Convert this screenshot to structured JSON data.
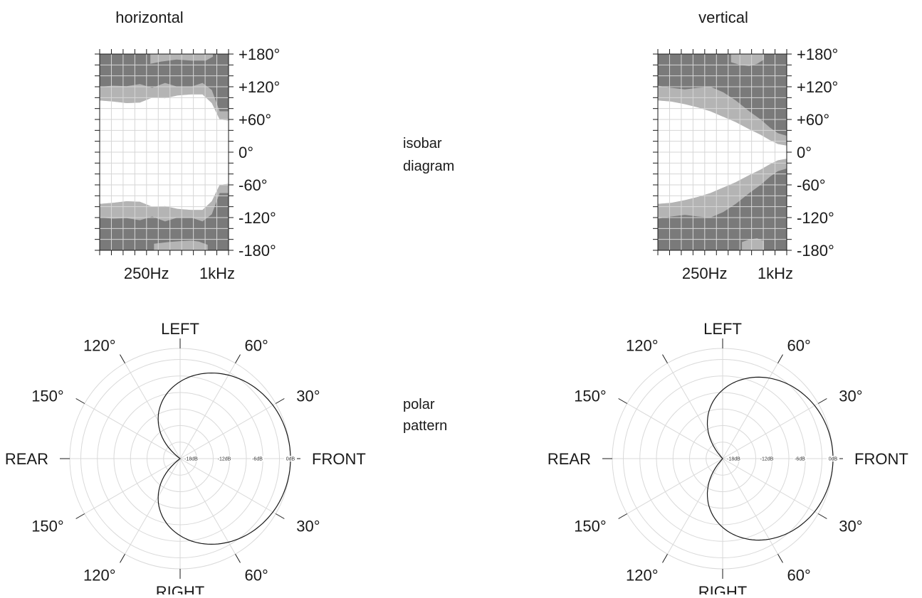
{
  "labels": {
    "horizontal": "horizontal",
    "vertical": "vertical",
    "isobar_line1": "isobar",
    "isobar_line2": "diagram",
    "polar_line1": "polar",
    "polar_line2": "pattern"
  },
  "colors": {
    "dark": "#7a7a7a",
    "light": "#b4b4b4",
    "grid_on_white": "#d6d6d6",
    "grid_on_fill": "#c8c8c8",
    "ink": "#1a1a1a",
    "polar_grid": "#d9d9d9"
  },
  "chart_data": [
    {
      "type": "heatmap",
      "name": "horizontal-isobar",
      "title": "horizontal",
      "x_scale": "log",
      "x_range_hz": [
        100,
        1250
      ],
      "x_tick_labels": [
        {
          "hz": 250,
          "label": "250Hz"
        },
        {
          "hz": 1000,
          "label": "1kHz"
        }
      ],
      "y_range_deg": [
        -180,
        180
      ],
      "y_tick_labels": [
        {
          "deg": 180,
          "label": "+180°"
        },
        {
          "deg": 120,
          "label": "+120°"
        },
        {
          "deg": 60,
          "label": "+60°"
        },
        {
          "deg": 0,
          "label": "0°"
        },
        {
          "deg": -60,
          "label": "-60°"
        },
        {
          "deg": -120,
          "label": "-120°"
        },
        {
          "deg": -180,
          "label": "-180°"
        }
      ],
      "boundary_freq_hz": [
        100,
        130,
        170,
        220,
        280,
        360,
        460,
        600,
        750,
        900,
        1050,
        1250
      ],
      "light_boundary_deg": [
        95,
        93,
        90,
        91,
        100,
        99,
        104,
        106,
        106,
        90,
        60,
        58
      ],
      "dark_boundary_deg": [
        120,
        122,
        121,
        125,
        118,
        127,
        120,
        120,
        127,
        114,
        75,
        75
      ],
      "top_blob": {
        "freq_hz": [
          270,
          330,
          450,
          600,
          800,
          920
        ],
        "lower_deg": [
          162,
          166,
          170,
          168,
          168,
          175
        ]
      },
      "bottom_blob": {
        "freq_hz": [
          290,
          380,
          500,
          600,
          700,
          830
        ],
        "upper_deg": [
          168,
          165,
          163,
          162,
          164,
          170
        ]
      }
    },
    {
      "type": "heatmap",
      "name": "vertical-isobar",
      "title": "vertical",
      "x_scale": "log",
      "x_range_hz": [
        100,
        1250
      ],
      "x_tick_labels": [
        {
          "hz": 250,
          "label": "250Hz"
        },
        {
          "hz": 1000,
          "label": "1kHz"
        }
      ],
      "y_range_deg": [
        -180,
        180
      ],
      "y_tick_labels": [
        {
          "deg": 180,
          "label": "+180°"
        },
        {
          "deg": 120,
          "label": "+120°"
        },
        {
          "deg": 60,
          "label": "+60°"
        },
        {
          "deg": 0,
          "label": "0°"
        },
        {
          "deg": -60,
          "label": "-60°"
        },
        {
          "deg": -120,
          "label": "-120°"
        },
        {
          "deg": -180,
          "label": "-180°"
        }
      ],
      "boundary_freq_hz": [
        100,
        130,
        170,
        220,
        280,
        360,
        460,
        600,
        750,
        900,
        1050,
        1250
      ],
      "light_boundary_deg": [
        95,
        93,
        88,
        82,
        75,
        65,
        55,
        42,
        32,
        22,
        15,
        12
      ],
      "dark_boundary_deg": [
        122,
        118,
        115,
        118,
        120,
        110,
        95,
        75,
        60,
        45,
        35,
        30
      ],
      "top_blob": {
        "freq_hz": [
          420,
          500,
          600,
          700,
          800
        ],
        "lower_deg": [
          165,
          160,
          158,
          162,
          170
        ]
      },
      "bottom_blob": {
        "freq_hz": [
          520,
          600,
          700,
          800
        ],
        "upper_deg": [
          165,
          160,
          158,
          163
        ]
      }
    },
    {
      "type": "line",
      "subtype": "polar",
      "name": "horizontal-polar",
      "angle_labels": {
        "front": "FRONT",
        "rear": "REAR",
        "left": "LEFT",
        "right": "RIGHT",
        "a30": "30°",
        "a60": "60°",
        "a120": "120°",
        "a150": "150°"
      },
      "db_rings": [
        {
          "db": -18,
          "label": "-18dB"
        },
        {
          "db": -12,
          "label": "-12dB"
        },
        {
          "db": -6,
          "label": "-6dB"
        },
        {
          "db": 0,
          "label": "0dB"
        }
      ],
      "db_range": [
        -20,
        0
      ],
      "pattern": "cardioid",
      "pattern_level_at_rear_db": -20
    },
    {
      "type": "line",
      "subtype": "polar",
      "name": "vertical-polar",
      "angle_labels": {
        "front": "FRONT",
        "rear": "REAR",
        "left": "LEFT",
        "right": "RIGHT",
        "a30": "30°",
        "a60": "60°",
        "a120": "120°",
        "a150": "150°"
      },
      "db_rings": [
        {
          "db": -18,
          "label": "-18dB"
        },
        {
          "db": -12,
          "label": "-12dB"
        },
        {
          "db": -6,
          "label": "-6dB"
        },
        {
          "db": 0,
          "label": "0dB"
        }
      ],
      "db_range": [
        -20,
        0
      ],
      "pattern": "cardioid-narrow",
      "pattern_level_at_rear_db": -20
    }
  ]
}
